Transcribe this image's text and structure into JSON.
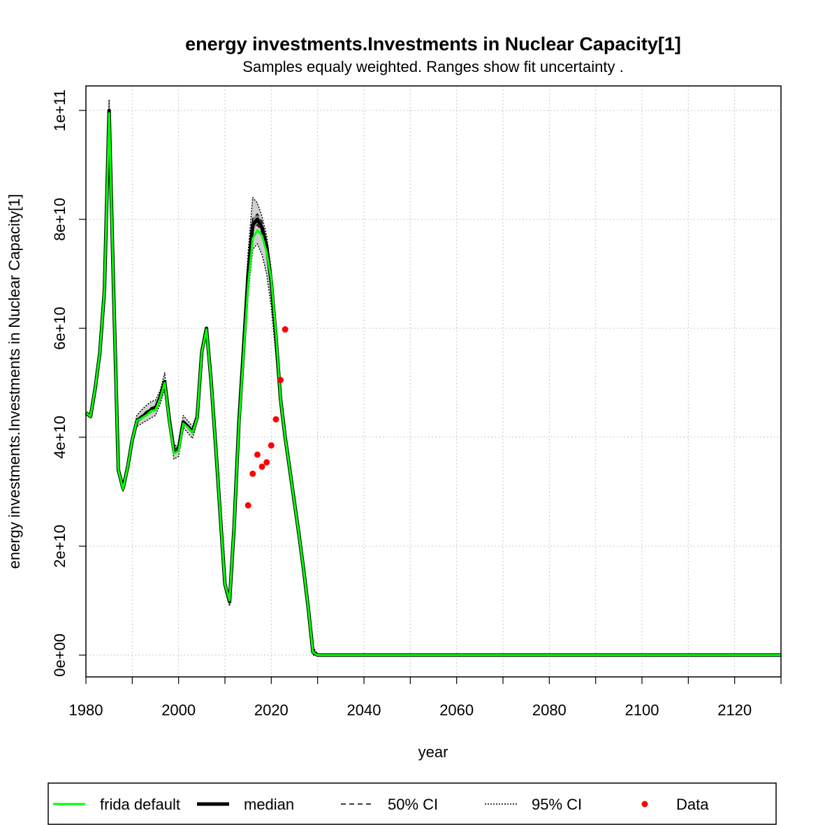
{
  "chart_data": {
    "type": "line",
    "title": "energy investments.Investments in Nuclear Capacity[1]",
    "subtitle": "Samples equaly weighted. Ranges show  fit uncertainty .",
    "xlabel": "year",
    "ylabel": "energy investments.Investments in Nuclear Capacity[1]",
    "xlim": [
      1980,
      2130
    ],
    "ylim": [
      -4000000000,
      104500000000
    ],
    "x_ticks": [
      1980,
      2000,
      2020,
      2040,
      2060,
      2080,
      2100,
      2120
    ],
    "x_tick_labels": [
      "1980",
      "2000",
      "2020",
      "2040",
      "2060",
      "2080",
      "2100",
      "2120"
    ],
    "x_grid": [
      1990,
      2000,
      2010,
      2020,
      2030,
      2040,
      2050,
      2060,
      2070,
      2080,
      2090,
      2100,
      2110,
      2120
    ],
    "x_minor_ticks": [
      1990,
      2010,
      2030,
      2050,
      2070,
      2090,
      2110,
      2130
    ],
    "y_ticks": [
      0,
      20000000000,
      40000000000,
      60000000000,
      80000000000,
      100000000000
    ],
    "y_tick_labels": [
      "0e+00",
      "2e+10",
      "4e+10",
      "6e+10",
      "8e+10",
      "1e+11"
    ],
    "grid": true,
    "legend_position": "bottom",
    "legend": [
      {
        "label": "frida default",
        "style": "solid-green"
      },
      {
        "label": "median",
        "style": "solid-black-thick"
      },
      {
        "label": "50% CI",
        "style": "dashed"
      },
      {
        "label": "95% CI",
        "style": "dotted"
      },
      {
        "label": "Data",
        "style": "red-point"
      }
    ],
    "colors": {
      "default": "#00ff00",
      "median": "#000000",
      "band95": "#d0d0d0",
      "band50": "#8a8a8a",
      "data": "#ff0000",
      "grid": "#c8c8c8"
    },
    "x": [
      1980,
      1981,
      1982,
      1983,
      1984,
      1985,
      1986,
      1987,
      1988,
      1989,
      1990,
      1991,
      1992,
      1993,
      1994,
      1995,
      1996,
      1997,
      1998,
      1999,
      2000,
      2001,
      2002,
      2003,
      2004,
      2005,
      2006,
      2007,
      2008,
      2009,
      2010,
      2011,
      2012,
      2013,
      2014,
      2015,
      2016,
      2017,
      2018,
      2019,
      2020,
      2021,
      2022,
      2023,
      2024,
      2025,
      2026,
      2027,
      2028,
      2029,
      2030,
      2031,
      2130
    ],
    "series": [
      {
        "name": "frida default",
        "values": [
          44500000000,
          43800000000,
          49000000000,
          55500000000,
          67000000000,
          99500000000,
          66000000000,
          34000000000,
          30500000000,
          34500000000,
          39500000000,
          43000000000,
          43500000000,
          44000000000,
          44800000000,
          45000000000,
          47000000000,
          50000000000,
          43000000000,
          37000000000,
          37500000000,
          42500000000,
          41800000000,
          40800000000,
          43500000000,
          55500000000,
          59800000000,
          50500000000,
          38500000000,
          25500000000,
          13000000000,
          10000000000,
          24000000000,
          42000000000,
          55000000000,
          68000000000,
          76500000000,
          78000000000,
          77000000000,
          74000000000,
          69000000000,
          59000000000,
          47000000000,
          40000000000,
          34000000000,
          28000000000,
          22000000000,
          15500000000,
          8500000000,
          500000000,
          0,
          0,
          0
        ]
      },
      {
        "name": "median",
        "values": [
          44500000000,
          43800000000,
          49000000000,
          55500000000,
          67000000000,
          100000000000,
          66000000000,
          34000000000,
          30600000000,
          34500000000,
          39500000000,
          43000000000,
          43700000000,
          44300000000,
          45000000000,
          45300000000,
          47300000000,
          50200000000,
          43200000000,
          37500000000,
          38000000000,
          42800000000,
          42000000000,
          41000000000,
          43600000000,
          55600000000,
          60000000000,
          50500000000,
          38500000000,
          25500000000,
          13000000000,
          9800000000,
          24000000000,
          42500000000,
          56000000000,
          70000000000,
          79000000000,
          80000000000,
          78500000000,
          75000000000,
          68500000000,
          58500000000,
          47000000000,
          40000000000,
          34000000000,
          28000000000,
          22000000000,
          15500000000,
          8500000000,
          500000000,
          0,
          0,
          0
        ]
      },
      {
        "name": "50% CI upper",
        "values": [
          44500000000,
          43800000000,
          49000000000,
          55500000000,
          67000000000,
          100000000000,
          66000000000,
          34000000000,
          30600000000,
          34500000000,
          39500000000,
          43200000000,
          44000000000,
          44700000000,
          45400000000,
          45700000000,
          47700000000,
          50500000000,
          43500000000,
          37800000000,
          38300000000,
          43000000000,
          42300000000,
          41200000000,
          43800000000,
          55700000000,
          60000000000,
          50600000000,
          38600000000,
          25600000000,
          13100000000,
          9900000000,
          24200000000,
          42800000000,
          56500000000,
          71000000000,
          80200000000,
          81000000000,
          79500000000,
          75800000000,
          69300000000,
          59200000000,
          47500000000,
          40300000000,
          34200000000,
          28200000000,
          22200000000,
          15700000000,
          8700000000,
          700000000,
          0,
          0,
          0
        ]
      },
      {
        "name": "50% CI lower",
        "values": [
          44500000000,
          43800000000,
          49000000000,
          55500000000,
          67000000000,
          99800000000,
          66000000000,
          34000000000,
          30500000000,
          34500000000,
          39500000000,
          42800000000,
          43400000000,
          43900000000,
          44600000000,
          44900000000,
          46900000000,
          49900000000,
          42900000000,
          37200000000,
          37700000000,
          42600000000,
          41700000000,
          40700000000,
          43400000000,
          55500000000,
          59900000000,
          50400000000,
          38400000000,
          25400000000,
          12900000000,
          9700000000,
          23800000000,
          42200000000,
          55500000000,
          69000000000,
          78000000000,
          79000000000,
          77500000000,
          74200000000,
          67800000000,
          57800000000,
          46500000000,
          39700000000,
          33800000000,
          27800000000,
          21800000000,
          15300000000,
          8300000000,
          300000000,
          0,
          0,
          0
        ]
      },
      {
        "name": "95% CI upper",
        "values": [
          44500000000,
          43800000000,
          49000000000,
          55500000000,
          67000000000,
          102000000000,
          66500000000,
          34500000000,
          31000000000,
          35000000000,
          40000000000,
          44000000000,
          45000000000,
          45800000000,
          46500000000,
          46800000000,
          48500000000,
          51800000000,
          44000000000,
          38500000000,
          38500000000,
          44000000000,
          43000000000,
          42000000000,
          44500000000,
          56000000000,
          60200000000,
          51000000000,
          39000000000,
          26000000000,
          13500000000,
          10500000000,
          25500000000,
          44000000000,
          58500000000,
          74000000000,
          84000000000,
          83000000000,
          80500000000,
          77000000000,
          70500000000,
          60500000000,
          48500000000,
          41000000000,
          35000000000,
          29000000000,
          23000000000,
          16500000000,
          9500000000,
          1500000000,
          200000000,
          0,
          0
        ]
      },
      {
        "name": "95% CI lower",
        "values": [
          44500000000,
          43800000000,
          49000000000,
          55500000000,
          67000000000,
          98000000000,
          65500000000,
          33500000000,
          30000000000,
          34000000000,
          39000000000,
          42000000000,
          42500000000,
          43000000000,
          43500000000,
          44000000000,
          46000000000,
          49000000000,
          42000000000,
          36000000000,
          36500000000,
          41800000000,
          40800000000,
          39800000000,
          42800000000,
          55000000000,
          59500000000,
          50000000000,
          38000000000,
          25000000000,
          12500000000,
          9000000000,
          22500000000,
          41000000000,
          54000000000,
          66500000000,
          74500000000,
          75500000000,
          73500000000,
          70000000000,
          64000000000,
          55000000000,
          45000000000,
          38500000000,
          33000000000,
          27000000000,
          21000000000,
          14500000000,
          7500000000,
          0,
          0,
          0,
          0
        ]
      }
    ],
    "data_points": {
      "name": "Data",
      "x": [
        2015,
        2016,
        2017,
        2018,
        2019,
        2020,
        2021,
        2022,
        2023
      ],
      "y": [
        27500000000,
        33300000000,
        36800000000,
        34600000000,
        35400000000,
        38500000000,
        43300000000,
        50500000000,
        59800000000
      ]
    }
  }
}
